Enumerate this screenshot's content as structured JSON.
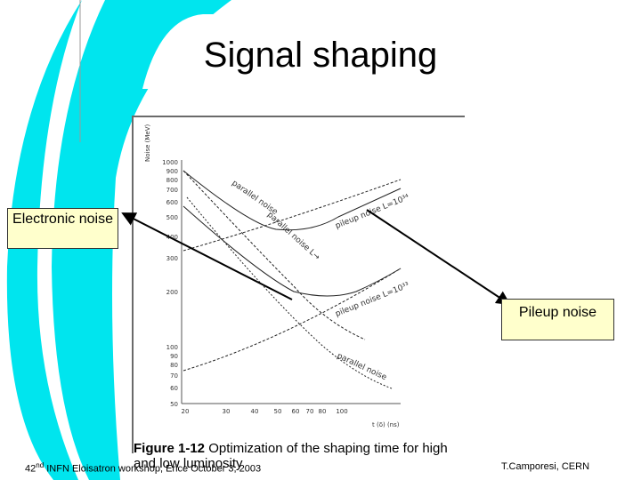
{
  "slide": {
    "title": "Signal shaping",
    "accent_color": "#00e5ee"
  },
  "figure": {
    "caption_label": "Figure 1-12",
    "caption_text": "Optimization of the shaping time for high and low luminosity",
    "y_axis_label": "Noise (MeV)",
    "x_axis_label": "t (δ) (ns)",
    "y_ticks": [
      "1000",
      "900",
      "800",
      "700",
      "600",
      "500",
      "400",
      "300",
      "200",
      "100",
      "90",
      "80",
      "70",
      "60",
      "50"
    ],
    "x_ticks": [
      "20",
      "30",
      "40",
      "50",
      "60",
      "70",
      "80",
      "100"
    ],
    "curve_labels": [
      "parallel noise",
      "pileup noise L=10³⁴",
      "parallel noise L→",
      "pileup noise L=10³³",
      "parallel noise"
    ]
  },
  "callouts": {
    "electronic_noise": "Electronic noise",
    "pileup_noise": "Pileup noise"
  },
  "footer": {
    "left_ordinal": "42",
    "left_suffix": "nd",
    "left_text": "INFN Eloisatron workshop, Erice October 3, 2003",
    "right_text": "T.Camporesi, CERN"
  }
}
